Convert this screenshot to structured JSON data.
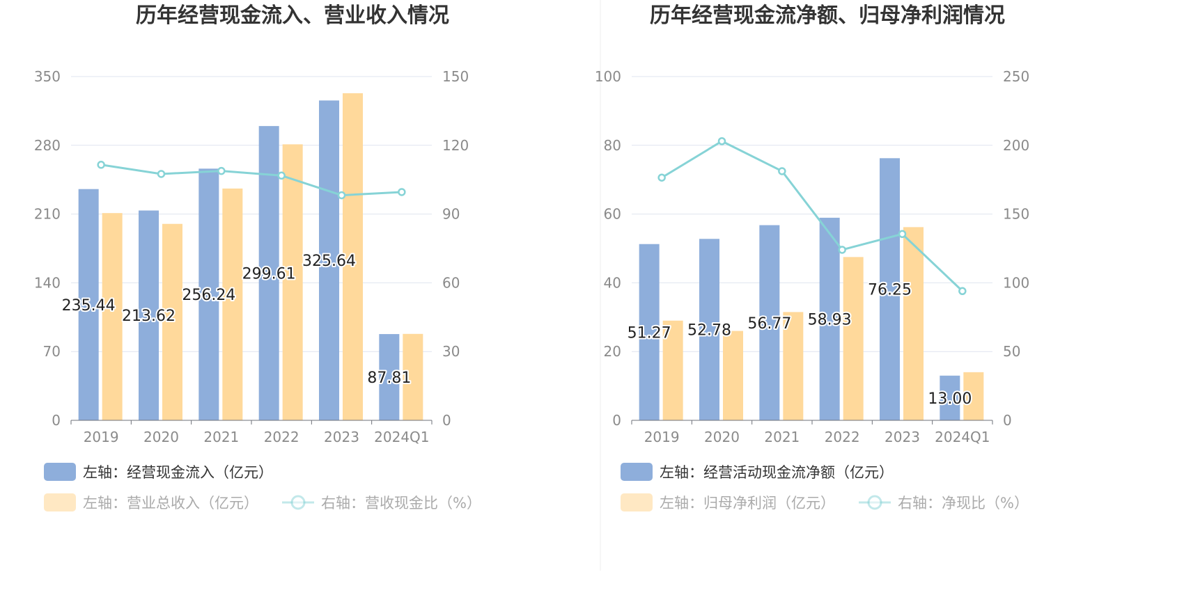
{
  "colors": {
    "bar_left": "#8eaedb",
    "bar_right": "#ffd99b",
    "line": "#86d3d6",
    "grid": "#dfe4ef",
    "axis_text": "#8a8a8a",
    "title": "#333333",
    "divider": "#eeeeee"
  },
  "chart_data": [
    {
      "type": "bar",
      "title": "历年经营现金流入、营业收入情况",
      "categories": [
        "2019",
        "2020",
        "2021",
        "2022",
        "2023",
        "2024Q1"
      ],
      "left_axis": {
        "ticks": [
          "0",
          "70",
          "140",
          "210",
          "280",
          "350"
        ],
        "min": 0,
        "max": 350
      },
      "right_axis": {
        "ticks": [
          "0",
          "30",
          "60",
          "90",
          "120",
          "150"
        ],
        "min": 0,
        "max": 150
      },
      "series": [
        {
          "name": "左轴：经营现金流入（亿元）",
          "axis": "left",
          "kind": "bar",
          "values": [
            235.44,
            213.62,
            256.24,
            299.61,
            325.64,
            87.81
          ],
          "labels": [
            "235.44",
            "213.62",
            "256.24",
            "299.61",
            "325.64",
            "87.81"
          ]
        },
        {
          "name": "左轴：营业总收入（亿元）",
          "axis": "left",
          "kind": "bar",
          "values": [
            211,
            200,
            236,
            281,
            333,
            88
          ]
        },
        {
          "name": "右轴：营收现金比（%）",
          "axis": "right",
          "kind": "line",
          "values": [
            111.5,
            107.5,
            108.8,
            106.8,
            98.2,
            99.6
          ]
        }
      ],
      "grid": true,
      "legend_position": "bottom"
    },
    {
      "type": "bar",
      "title": "历年经营现金流净额、归母净利润情况",
      "categories": [
        "2019",
        "2020",
        "2021",
        "2022",
        "2023",
        "2024Q1"
      ],
      "left_axis": {
        "ticks": [
          "0",
          "20",
          "40",
          "60",
          "80",
          "100"
        ],
        "min": 0,
        "max": 100
      },
      "right_axis": {
        "ticks": [
          "0",
          "50",
          "100",
          "150",
          "200",
          "250"
        ],
        "min": 0,
        "max": 250
      },
      "series": [
        {
          "name": "左轴：经营活动现金流净额（亿元）",
          "axis": "left",
          "kind": "bar",
          "values": [
            51.27,
            52.78,
            56.77,
            58.93,
            76.25,
            13.0
          ],
          "labels": [
            "51.27",
            "52.78",
            "56.77",
            "58.93",
            "76.25",
            "13.00"
          ]
        },
        {
          "name": "左轴：归母净利润（亿元）",
          "axis": "left",
          "kind": "bar",
          "values": [
            29.0,
            26.0,
            31.5,
            47.5,
            56.2,
            14.0
          ]
        },
        {
          "name": "右轴：净现比（%）",
          "axis": "right",
          "kind": "line",
          "values": [
            176.5,
            203.0,
            181.2,
            124.0,
            135.5,
            94.0
          ]
        }
      ],
      "grid": true,
      "legend_position": "bottom"
    }
  ]
}
